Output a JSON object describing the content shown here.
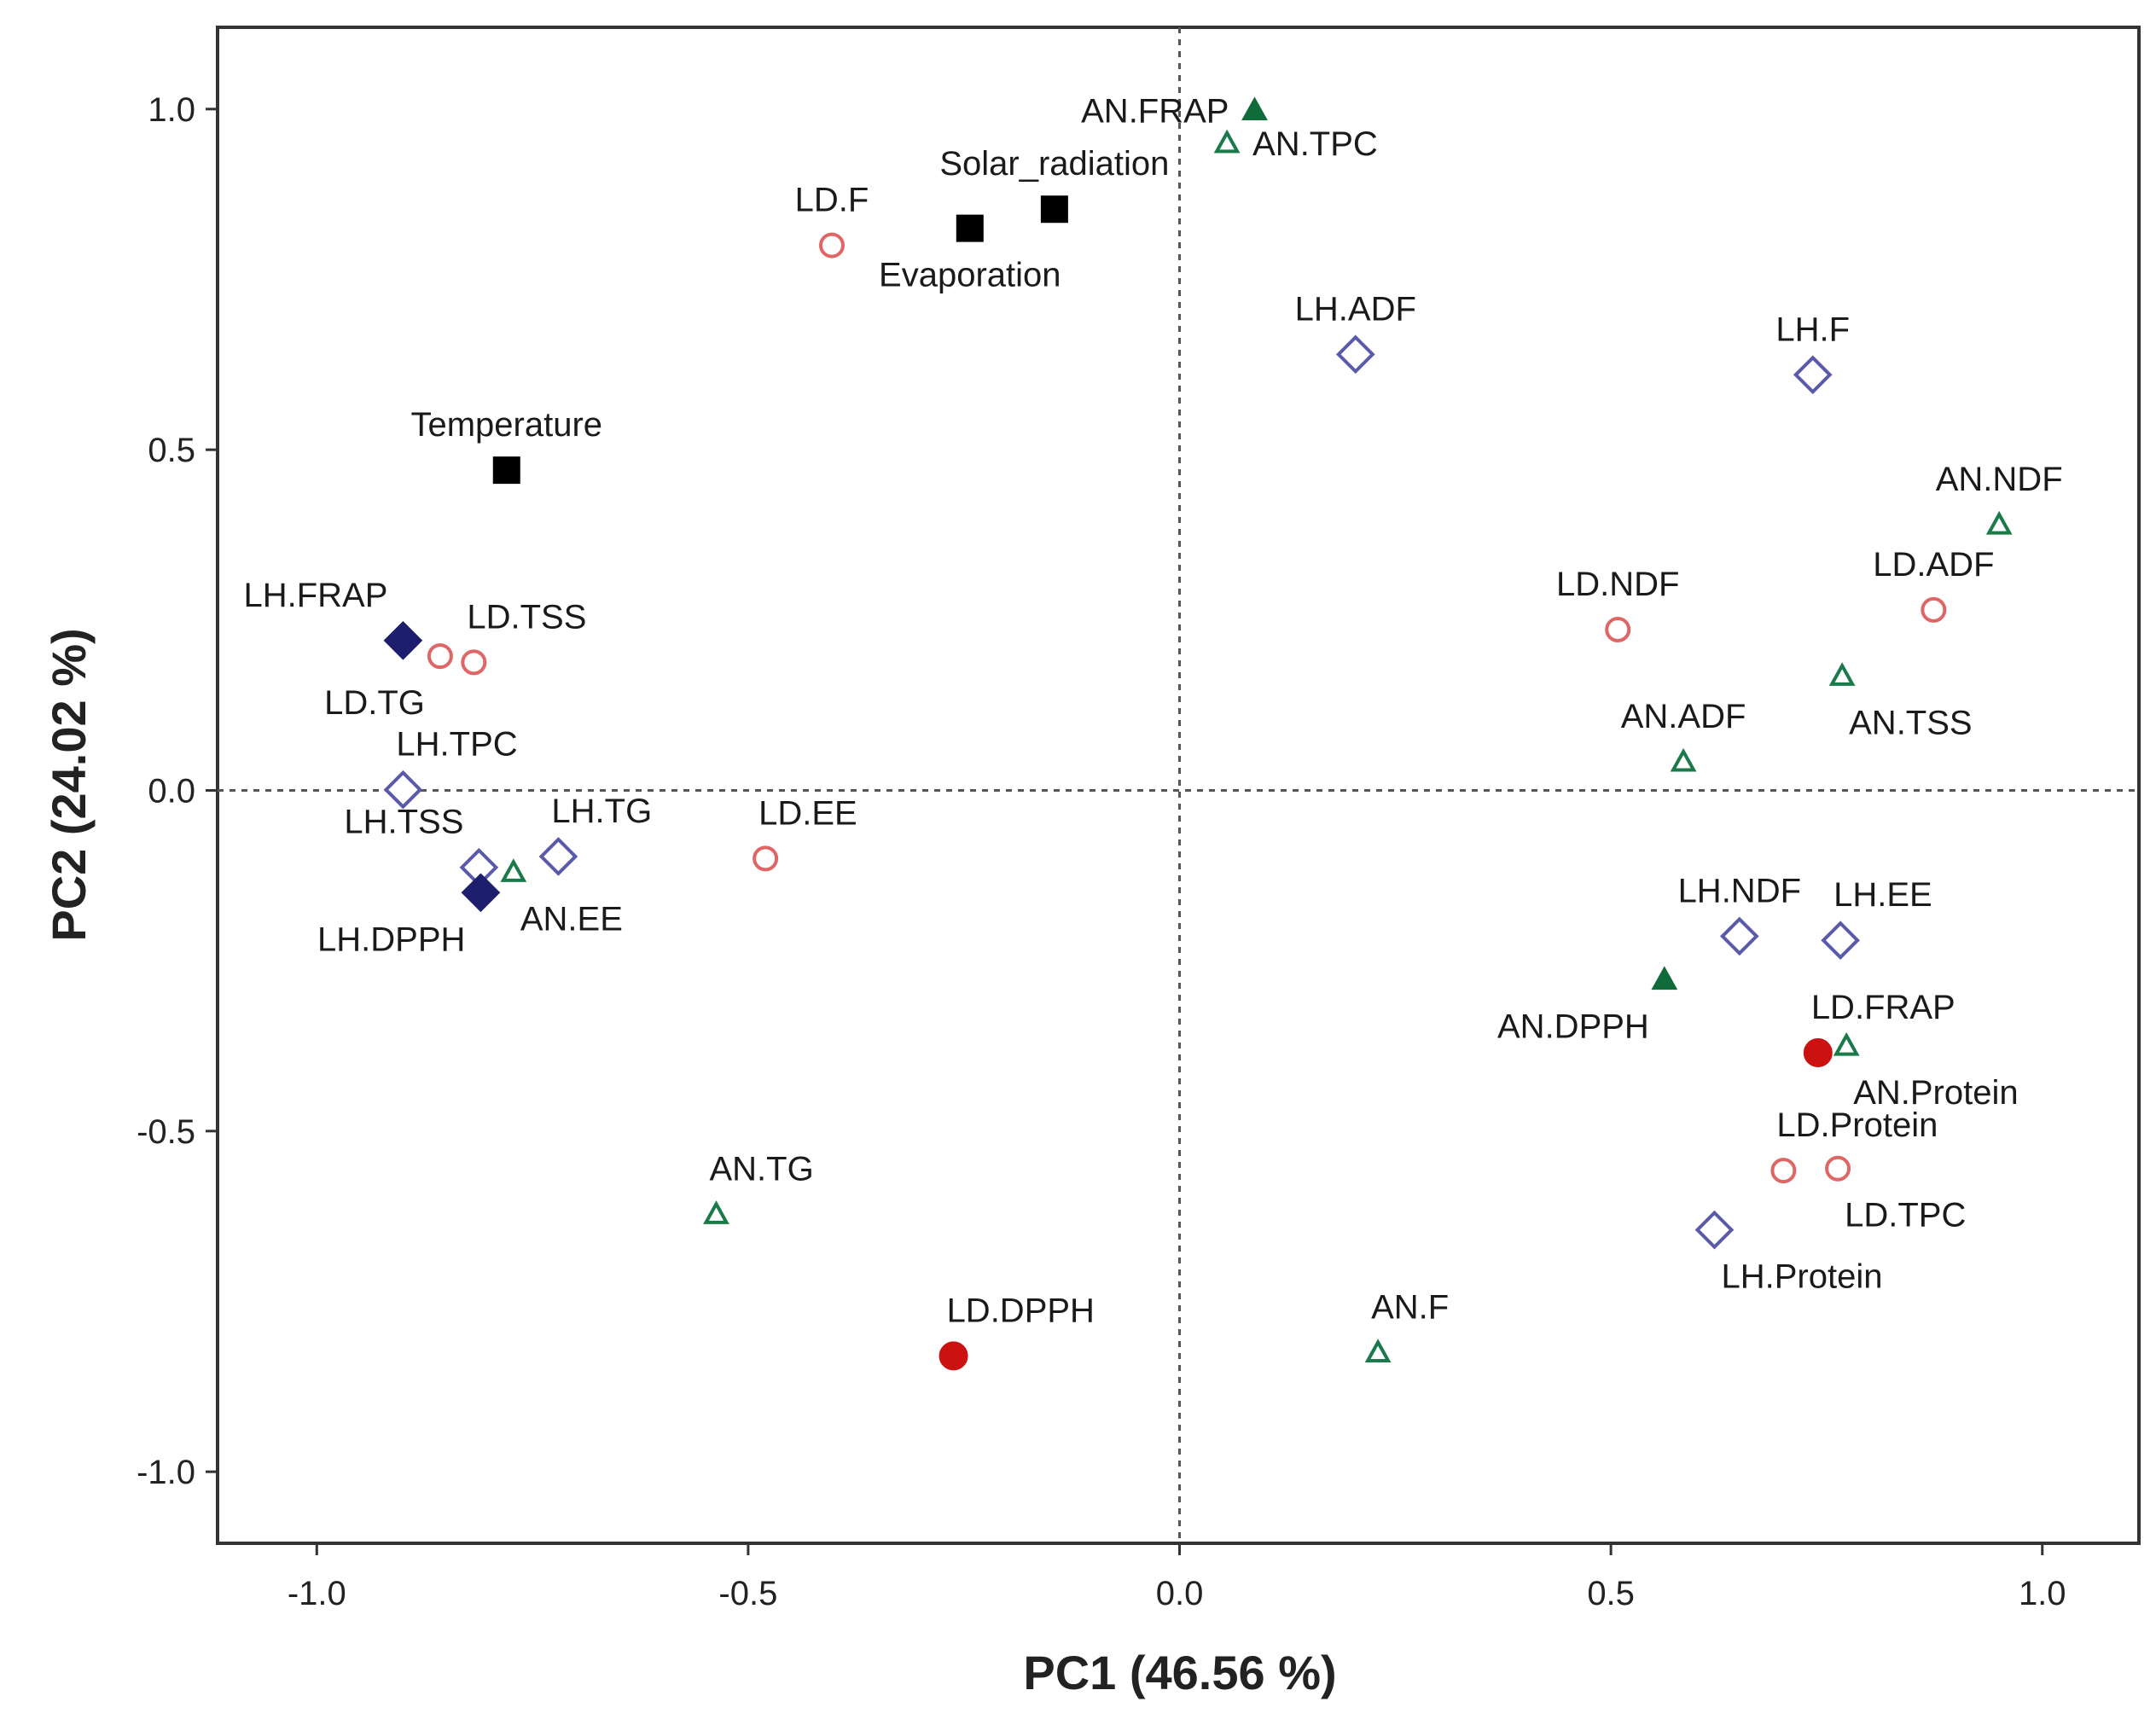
{
  "chart_data": {
    "type": "scatter",
    "title": "",
    "xlabel": "PC1 (46.56 %)",
    "ylabel": "PC2 (24.02 %)",
    "xlim": [
      -1.115,
      1.112
    ],
    "ylim": [
      -1.105,
      1.12
    ],
    "xticks": [
      -1.0,
      -0.5,
      0.0,
      0.5,
      1.0
    ],
    "xtick_labels": [
      "-1.0",
      "-0.5",
      "0.0",
      "0.5",
      "1.0"
    ],
    "yticks": [
      -1.0,
      -0.5,
      0.0,
      0.5,
      1.0
    ],
    "ytick_labels": [
      "-1.0",
      "-0.5",
      "0.0",
      "0.5",
      "1.0"
    ],
    "reference_lines": {
      "x": 0,
      "y": 0,
      "style": "dotted"
    },
    "grid": false,
    "styles": {
      "square-filled": {
        "color": "#000000",
        "filled": true
      },
      "circle-open": {
        "color": "#e06666",
        "filled": false
      },
      "circle-filled": {
        "color": "#cc1111",
        "filled": true
      },
      "diamond-open": {
        "color": "#5a5aaa",
        "filled": false
      },
      "diamond-filled": {
        "color": "#1e1e6e",
        "filled": true
      },
      "triangle-open": {
        "color": "#1a7a4a",
        "filled": false
      },
      "triangle-filled": {
        "color": "#0f6b3a",
        "filled": true
      }
    },
    "points": [
      {
        "label": "Temperature",
        "x": -0.78,
        "y": 0.47,
        "marker": "square-filled",
        "label_pos": "above"
      },
      {
        "label": "Evaporation",
        "x": -0.243,
        "y": 0.825,
        "marker": "square-filled",
        "label_pos": "below"
      },
      {
        "label": "Solar_radiation",
        "x": -0.145,
        "y": 0.853,
        "marker": "square-filled",
        "label_pos": "above"
      },
      {
        "label": "AN.FRAP",
        "x": 0.087,
        "y": 0.998,
        "marker": "triangle-filled",
        "label_pos": "left"
      },
      {
        "label": "AN.TPC",
        "x": 0.055,
        "y": 0.95,
        "marker": "triangle-open",
        "label_pos": "right"
      },
      {
        "label": "LD.F",
        "x": -0.403,
        "y": 0.8,
        "marker": "circle-open",
        "label_pos": "above"
      },
      {
        "label": "LH.ADF",
        "x": 0.204,
        "y": 0.64,
        "marker": "diamond-open",
        "label_pos": "above"
      },
      {
        "label": "LH.F",
        "x": 0.734,
        "y": 0.61,
        "marker": "diamond-open",
        "label_pos": "above"
      },
      {
        "label": "AN.NDF",
        "x": 0.95,
        "y": 0.39,
        "marker": "triangle-open",
        "label_pos": "above"
      },
      {
        "label": "LD.ADF",
        "x": 0.874,
        "y": 0.265,
        "marker": "circle-open",
        "label_pos": "above"
      },
      {
        "label": "LD.NDF",
        "x": 0.508,
        "y": 0.236,
        "marker": "circle-open",
        "label_pos": "above"
      },
      {
        "label": "AN.TSS",
        "x": 0.768,
        "y": 0.168,
        "marker": "triangle-open",
        "label_pos": "below-right"
      },
      {
        "label": "AN.ADF",
        "x": 0.584,
        "y": 0.042,
        "marker": "triangle-open",
        "label_pos": "above"
      },
      {
        "label": "LH.FRAP",
        "x": -0.9,
        "y": 0.22,
        "marker": "diamond-filled",
        "label_pos": "above-left"
      },
      {
        "label": "LD.TG",
        "x": -0.857,
        "y": 0.197,
        "marker": "circle-open",
        "label_pos": "below-left"
      },
      {
        "label": "LD.TSS",
        "x": -0.818,
        "y": 0.188,
        "marker": "circle-open",
        "label_pos": "above-right"
      },
      {
        "label": "LH.TPC",
        "x": -0.9,
        "y": 0.001,
        "marker": "diamond-open",
        "label_pos": "above-right"
      },
      {
        "label": "LH.TG",
        "x": -0.72,
        "y": -0.097,
        "marker": "diamond-open",
        "label_pos": "above-right"
      },
      {
        "label": "LH.TSS",
        "x": -0.812,
        "y": -0.113,
        "marker": "diamond-open",
        "label_pos": "above-left"
      },
      {
        "label": "AN.EE",
        "x": -0.772,
        "y": -0.12,
        "marker": "triangle-open",
        "label_pos": "below-right"
      },
      {
        "label": "LH.DPPH",
        "x": -0.81,
        "y": -0.15,
        "marker": "diamond-filled",
        "label_pos": "below-left"
      },
      {
        "label": "LD.EE",
        "x": -0.48,
        "y": -0.1,
        "marker": "circle-open",
        "label_pos": "above-right"
      },
      {
        "label": "LH.NDF",
        "x": 0.649,
        "y": -0.214,
        "marker": "diamond-open",
        "label_pos": "above"
      },
      {
        "label": "LH.EE",
        "x": 0.766,
        "y": -0.22,
        "marker": "diamond-open",
        "label_pos": "above-right"
      },
      {
        "label": "AN.DPPH",
        "x": 0.562,
        "y": -0.278,
        "marker": "triangle-filled",
        "label_pos": "below-left"
      },
      {
        "label": "LD.FRAP",
        "x": 0.74,
        "y": -0.385,
        "marker": "circle-filled",
        "label_pos": "above-right"
      },
      {
        "label": "AN.Protein",
        "x": 0.773,
        "y": -0.375,
        "marker": "triangle-open",
        "label_pos": "below-right"
      },
      {
        "label": "LD.Protein",
        "x": 0.7,
        "y": -0.558,
        "marker": "circle-open",
        "label_pos": "above-right"
      },
      {
        "label": "LD.TPC",
        "x": 0.763,
        "y": -0.555,
        "marker": "circle-open",
        "label_pos": "below-right"
      },
      {
        "label": "LH.Protein",
        "x": 0.62,
        "y": -0.645,
        "marker": "diamond-open",
        "label_pos": "below-right"
      },
      {
        "label": "AN.TG",
        "x": -0.537,
        "y": -0.622,
        "marker": "triangle-open",
        "label_pos": "above-right"
      },
      {
        "label": "LD.DPPH",
        "x": -0.262,
        "y": -0.83,
        "marker": "circle-filled",
        "label_pos": "above-right"
      },
      {
        "label": "AN.F",
        "x": 0.23,
        "y": -0.825,
        "marker": "triangle-open",
        "label_pos": "above-right"
      }
    ]
  }
}
